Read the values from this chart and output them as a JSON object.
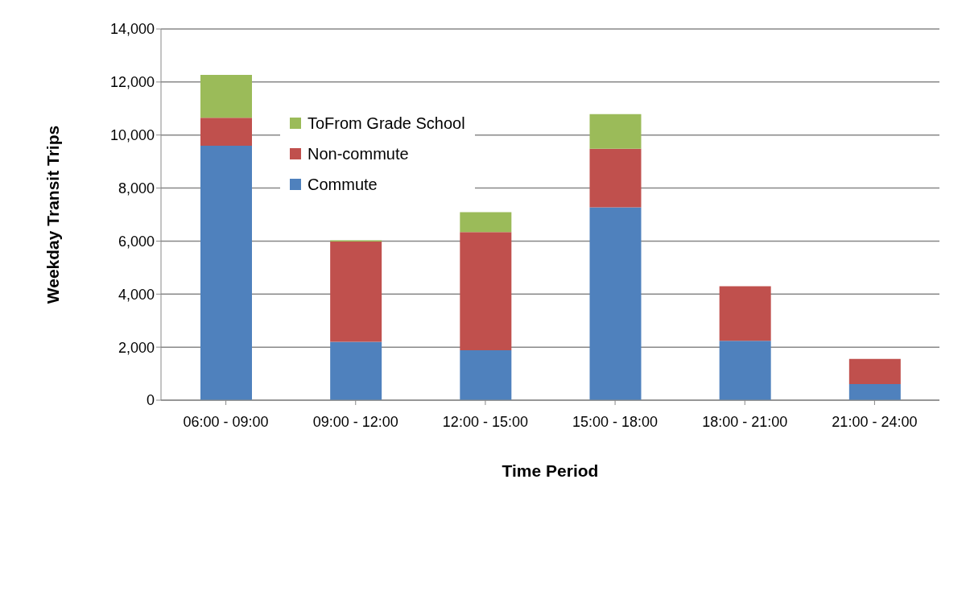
{
  "chart_data": {
    "type": "bar",
    "stacked": true,
    "xlabel": "Time Period",
    "ylabel": "Weekday Transit Trips",
    "categories": [
      "06:00 - 09:00",
      "09:00 - 12:00",
      "12:00 - 15:00",
      "15:00 - 18:00",
      "18:00 - 21:00",
      "21:00 - 24:00"
    ],
    "series": [
      {
        "name": "Commute",
        "color": "#4f81bd",
        "values": [
          9600,
          2200,
          1880,
          7270,
          2240,
          610
        ]
      },
      {
        "name": "Non-commute",
        "color": "#c0504d",
        "values": [
          1050,
          3780,
          4460,
          2210,
          2060,
          950
        ]
      },
      {
        "name": "ToFrom Grade School",
        "color": "#9bbb59",
        "values": [
          1620,
          50,
          750,
          1310,
          0,
          0
        ]
      }
    ],
    "ylim": [
      0,
      14000
    ],
    "yticks": [
      0,
      {
        "value": 2000,
        "label": "2,000"
      },
      {
        "value": 4000,
        "label": "4,000"
      },
      {
        "value": 6000,
        "label": "6,000"
      },
      {
        "value": 8000,
        "label": "8,000"
      },
      {
        "value": 10000,
        "label": "10,000"
      },
      {
        "value": 12000,
        "label": "12,000"
      },
      {
        "value": 14000,
        "label": "14,000"
      }
    ],
    "grid": "y",
    "legend": "top left"
  }
}
